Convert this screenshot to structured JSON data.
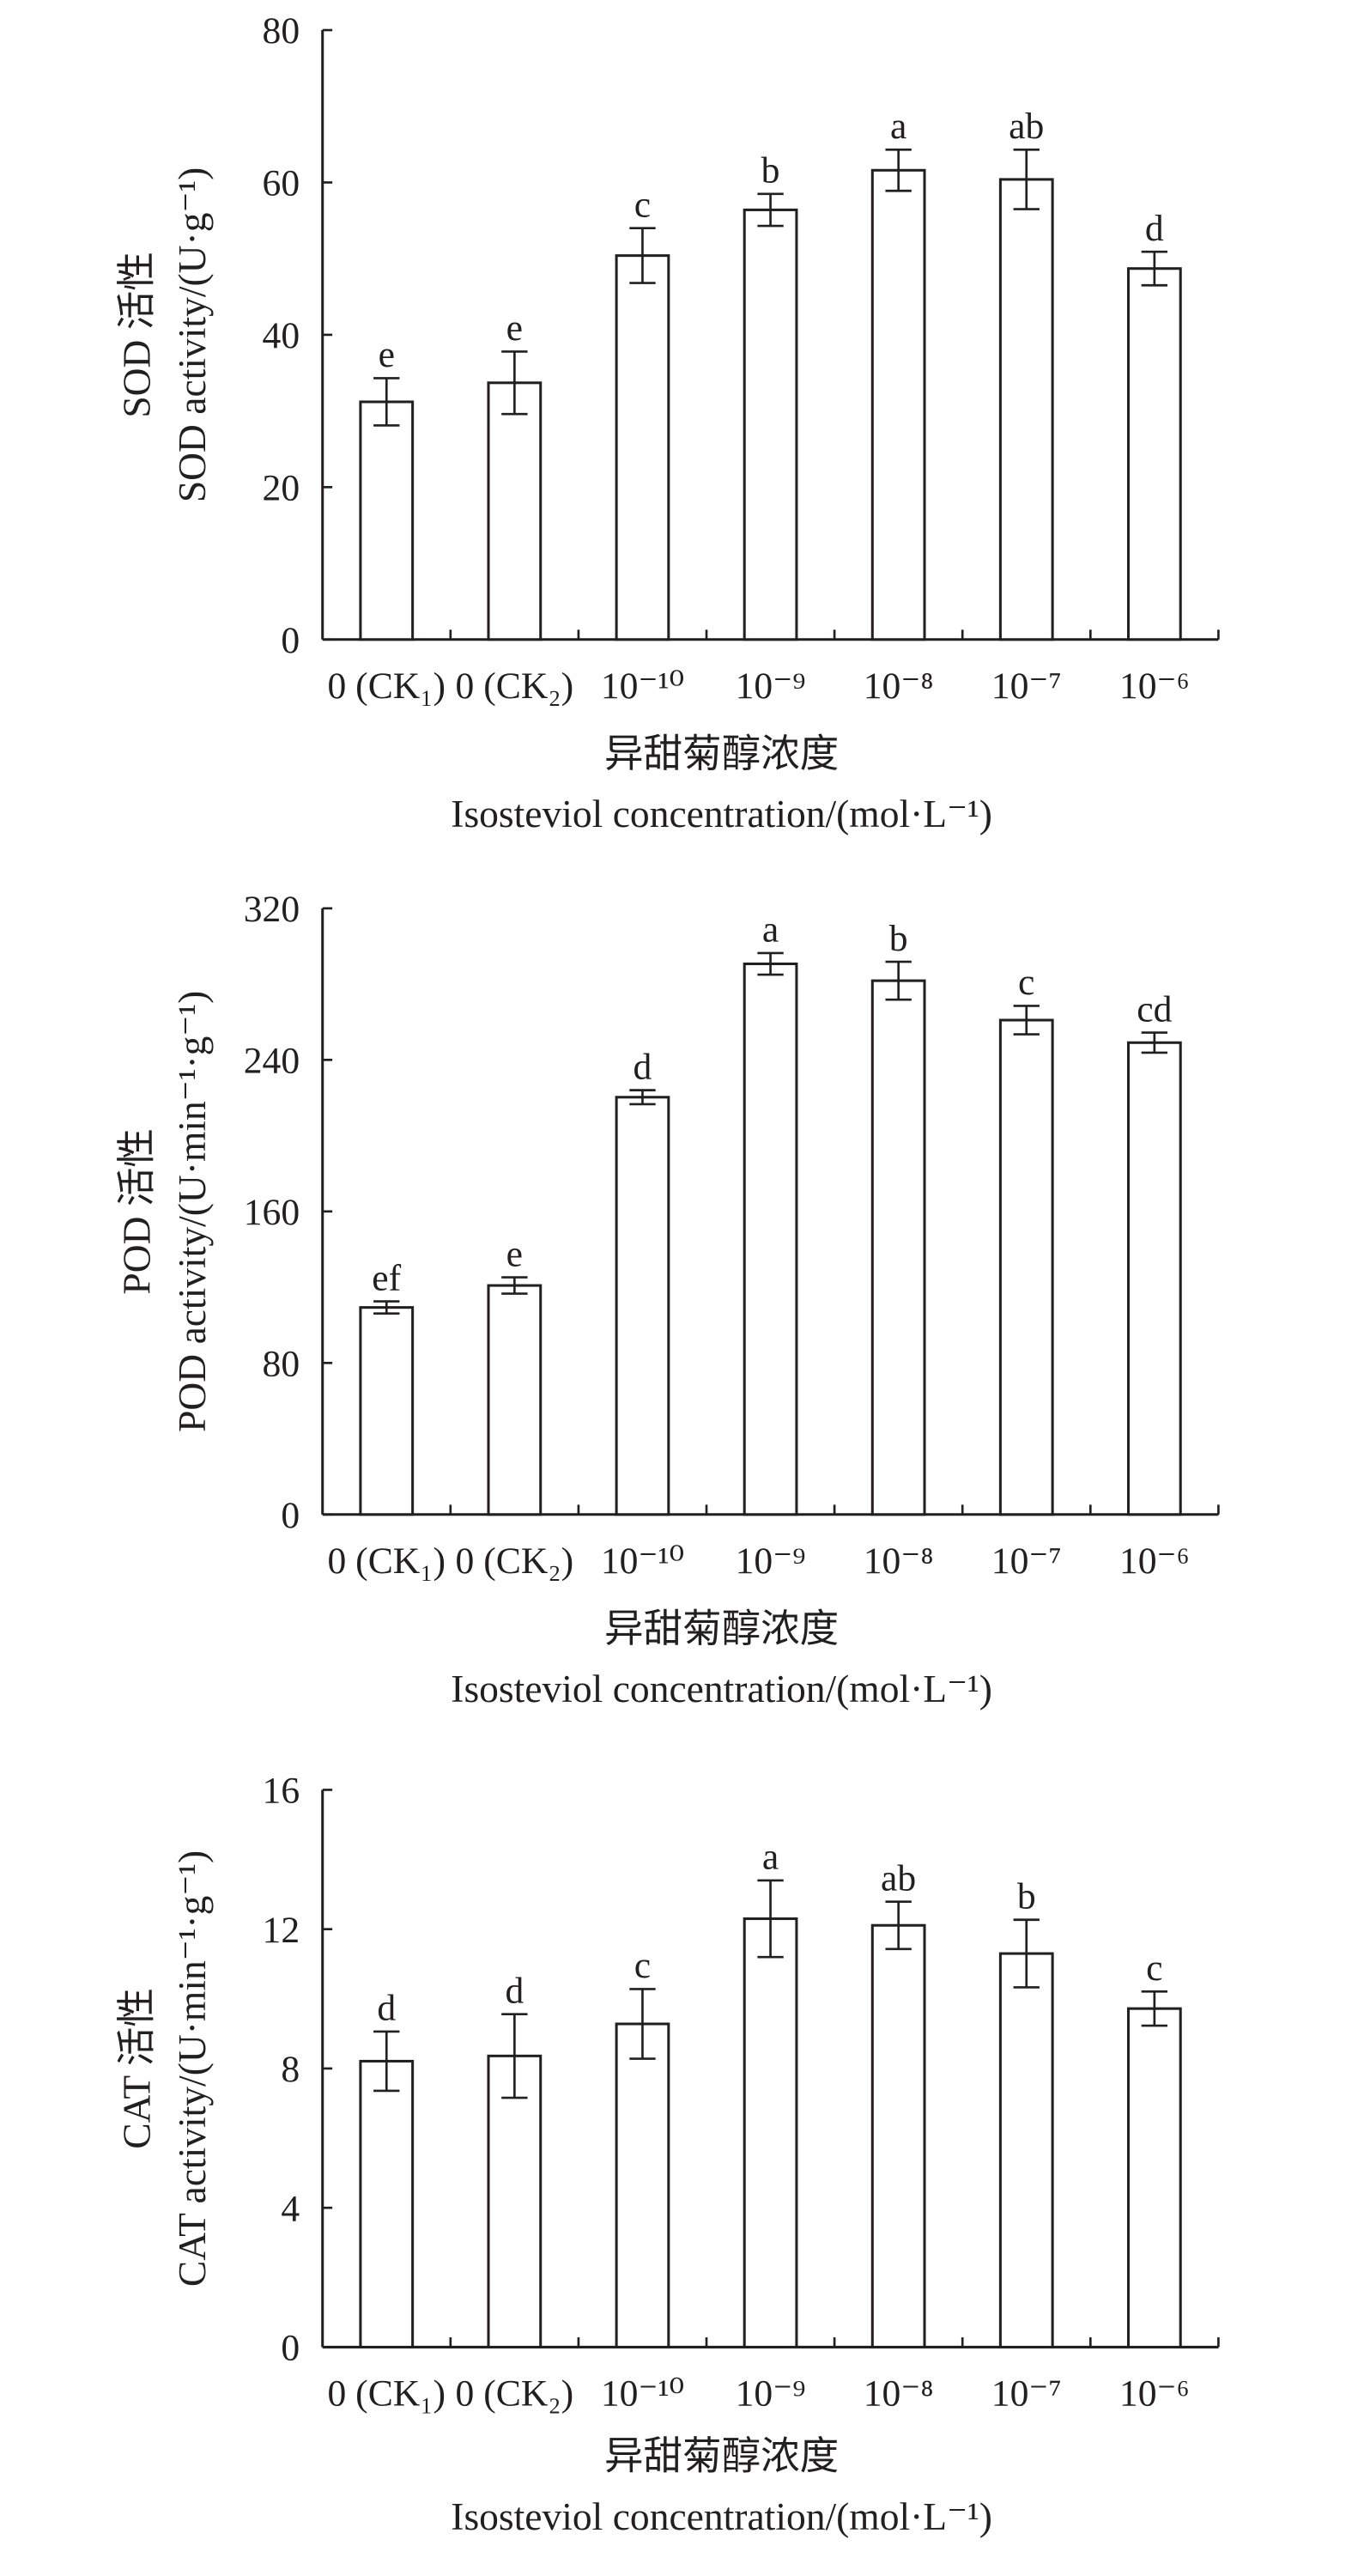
{
  "chart_data": [
    {
      "type": "bar",
      "categories": [
        "0 (CK₁)",
        "0 (CK₂)",
        "10⁻¹⁰",
        "10⁻⁹",
        "10⁻⁸",
        "10⁻⁷",
        "10⁻⁶"
      ],
      "values": [
        31.2,
        33.7,
        50.4,
        56.4,
        61.6,
        60.4,
        48.7
      ],
      "errors": [
        3.1,
        4.1,
        3.6,
        2.1,
        2.7,
        3.9,
        2.2
      ],
      "letters": [
        "e",
        "e",
        "c",
        "b",
        "a",
        "ab",
        "d"
      ],
      "ylabel": [
        "SOD 活性",
        "SOD activity/(U·g⁻¹)"
      ],
      "xlabel": [
        "异甜菊醇浓度",
        "Isosteviol concentration/(mol·L⁻¹)"
      ],
      "ylim": [
        0,
        80
      ],
      "yticks": [
        0,
        20,
        40,
        60,
        80
      ],
      "grid": false
    },
    {
      "type": "bar",
      "categories": [
        "0 (CK₁)",
        "0 (CK₂)",
        "10⁻¹⁰",
        "10⁻⁹",
        "10⁻⁸",
        "10⁻⁷",
        "10⁻⁶"
      ],
      "values": [
        109.3,
        120.9,
        220.3,
        290.7,
        281.8,
        261.0,
        249.1
      ],
      "errors": [
        3.2,
        4.3,
        3.7,
        5.7,
        10.0,
        7.5,
        5.3
      ],
      "letters": [
        "ef",
        "e",
        "d",
        "a",
        "b",
        "c",
        "cd"
      ],
      "ylabel": [
        "POD 活性",
        "POD activity/(U·min⁻¹·g⁻¹)"
      ],
      "xlabel": [
        "异甜菊醇浓度",
        "Isosteviol concentration/(mol·L⁻¹)"
      ],
      "ylim": [
        0,
        320
      ],
      "yticks": [
        0,
        80,
        160,
        240,
        320
      ],
      "grid": false
    },
    {
      "type": "bar",
      "categories": [
        "0 (CK₁)",
        "0 (CK₂)",
        "10⁻¹⁰",
        "10⁻⁹",
        "10⁻⁸",
        "10⁻⁷",
        "10⁻⁶"
      ],
      "values": [
        8.21,
        8.36,
        9.28,
        12.3,
        12.11,
        11.3,
        9.72
      ],
      "errors": [
        0.85,
        1.2,
        1.0,
        1.1,
        0.68,
        0.97,
        0.49
      ],
      "letters": [
        "d",
        "d",
        "c",
        "a",
        "ab",
        "b",
        "c"
      ],
      "ylabel": [
        "CAT 活性",
        "CAT activity/(U·min⁻¹·g⁻¹)"
      ],
      "xlabel": [
        "异甜菊醇浓度",
        "Isosteviol concentration/(mol·L⁻¹)"
      ],
      "ylim": [
        0,
        16
      ],
      "yticks": [
        0,
        4,
        8,
        12,
        16
      ],
      "grid": false
    }
  ]
}
